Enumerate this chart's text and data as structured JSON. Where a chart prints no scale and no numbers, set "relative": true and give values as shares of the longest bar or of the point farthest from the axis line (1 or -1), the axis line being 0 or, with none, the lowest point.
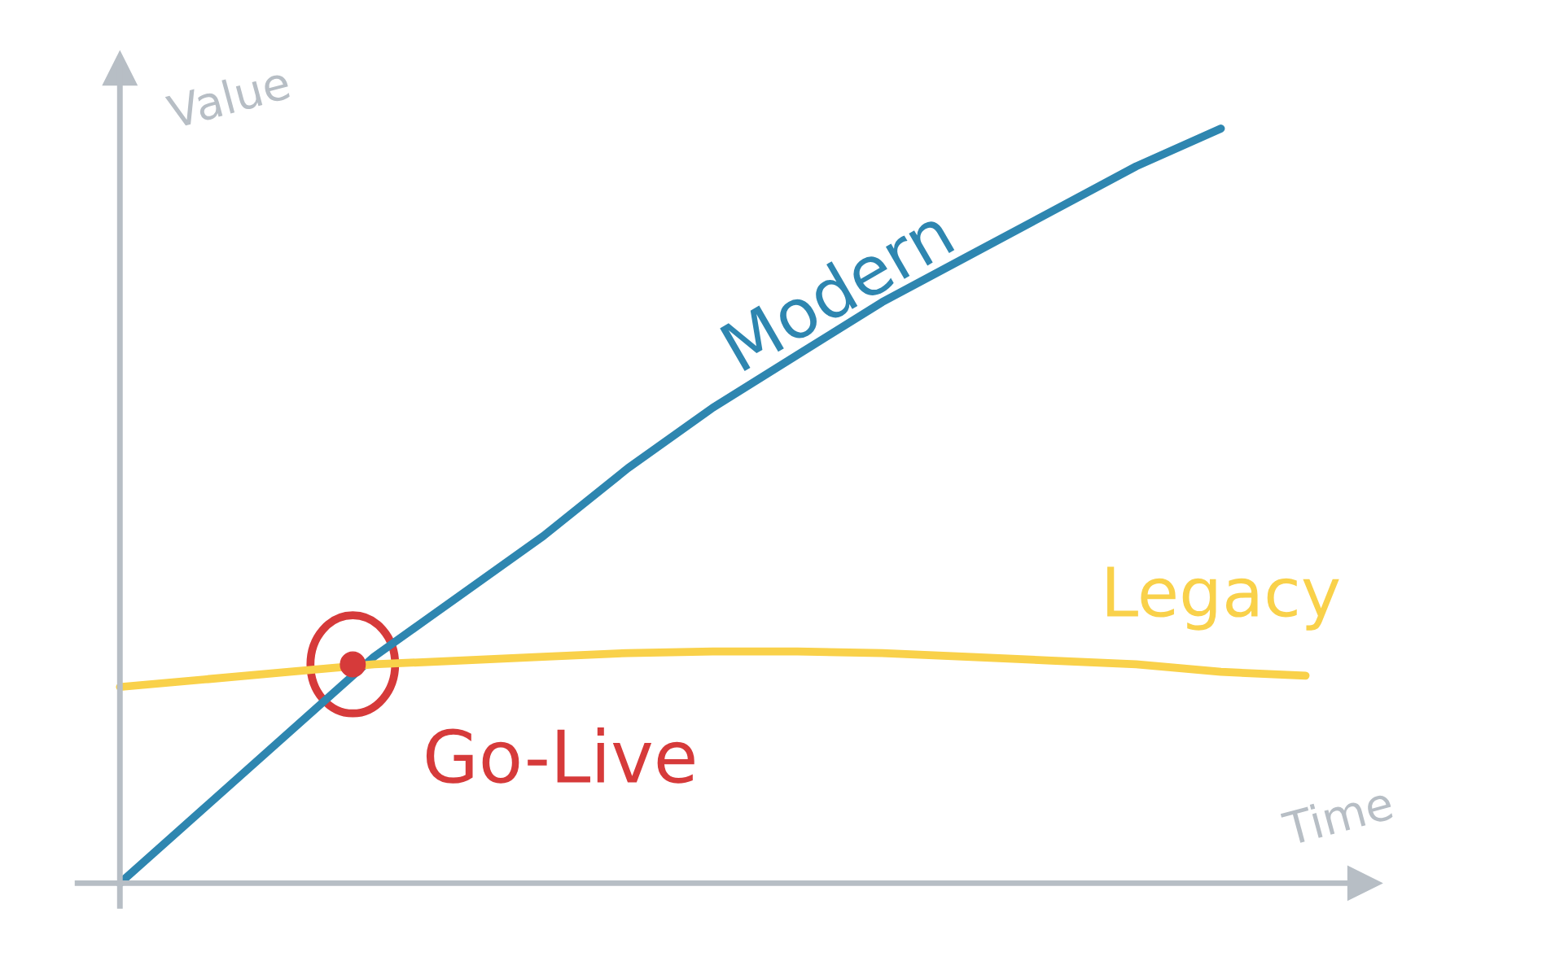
{
  "chart_data": {
    "type": "line",
    "relative": true,
    "xlabel": "Time",
    "ylabel": "Value",
    "tick_labels": false,
    "line_style": "solid",
    "categories": [
      null,
      null,
      null,
      null,
      null,
      null,
      null,
      null,
      null,
      null,
      null,
      null,
      null,
      null,
      null
    ],
    "series": [
      {
        "name": "Modern",
        "color": "#2e86b0",
        "values": [
          0.0,
          0.1,
          0.2,
          0.3,
          0.38,
          0.46,
          0.55,
          0.63,
          0.7,
          0.77,
          0.83,
          0.89,
          0.95,
          1.0,
          null
        ]
      },
      {
        "name": "Legacy",
        "color": "#f9d14a",
        "values": [
          0.26,
          0.27,
          0.28,
          0.29,
          0.295,
          0.3,
          0.305,
          0.307,
          0.307,
          0.305,
          0.3,
          0.295,
          0.29,
          0.28,
          0.275
        ]
      }
    ],
    "annotations": [
      "Go-Live"
    ]
  }
}
